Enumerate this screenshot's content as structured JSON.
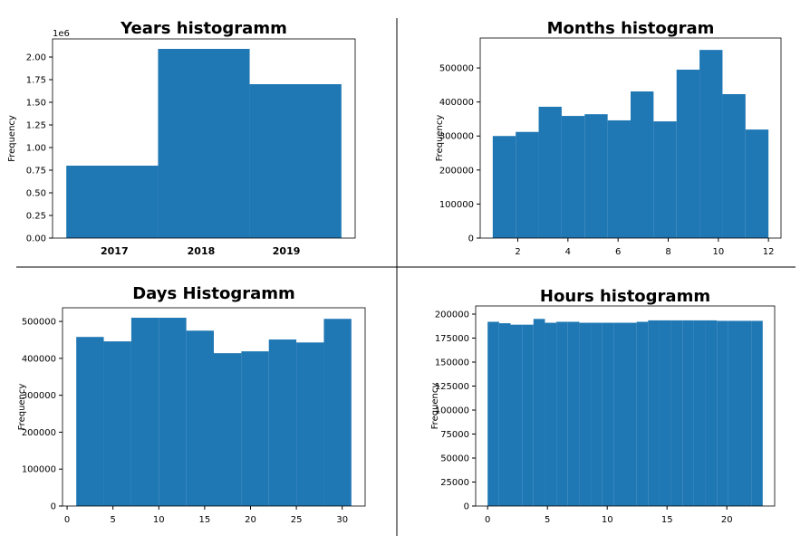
{
  "chart_data": [
    {
      "type": "histogram",
      "title": "Years histogramm",
      "ylabel": "Frequency",
      "offset_text": "1e6",
      "color": "#1f77b4",
      "bins": [
        2017,
        2017.667,
        2018.333,
        2019
      ],
      "values": [
        0.8,
        2.09,
        1.7
      ],
      "xlim": [
        2016.9,
        2019.1
      ],
      "ylim": [
        0,
        2.2
      ],
      "xticks": [
        {
          "value": 2017.35,
          "label": "2017"
        },
        {
          "value": 2017.98,
          "label": "2018"
        },
        {
          "value": 2018.6,
          "label": "2019"
        }
      ],
      "yticks": [
        {
          "value": 0,
          "label": "0.00"
        },
        {
          "value": 0.25,
          "label": "0.25"
        },
        {
          "value": 0.5,
          "label": "0.50"
        },
        {
          "value": 0.75,
          "label": "0.75"
        },
        {
          "value": 1,
          "label": "1.00"
        },
        {
          "value": 1.25,
          "label": "1.25"
        },
        {
          "value": 1.5,
          "label": "1.50"
        },
        {
          "value": 1.75,
          "label": "1.75"
        },
        {
          "value": 2,
          "label": "2.00"
        }
      ]
    },
    {
      "type": "histogram",
      "title": "Months histogram",
      "ylabel": "Frequency",
      "color": "#1f77b4",
      "bins": [
        1,
        1.9167,
        2.8333,
        3.75,
        4.6667,
        5.5833,
        6.5,
        7.4167,
        8.3333,
        9.25,
        10.1667,
        11.0833,
        12
      ],
      "values": [
        300000,
        312000,
        386000,
        359000,
        364000,
        346000,
        431000,
        343000,
        495000,
        553000,
        423000,
        319000
      ],
      "xlim": [
        0.5,
        12.5
      ],
      "ylim": [
        0,
        588000
      ],
      "xticks": [
        2,
        4,
        6,
        8,
        10,
        12
      ],
      "yticks": [
        0,
        100000,
        200000,
        300000,
        400000,
        500000
      ]
    },
    {
      "type": "histogram",
      "title": "Days Histogramm",
      "ylabel": "Frequency",
      "color": "#1f77b4",
      "bins": [
        1,
        4,
        7,
        10,
        13,
        16,
        19,
        22,
        25,
        28,
        31
      ],
      "values": [
        458000,
        446000,
        510000,
        510000,
        475000,
        414000,
        419000,
        451000,
        443000,
        507000
      ],
      "xlim": [
        -0.5,
        32.5
      ],
      "ylim": [
        0,
        537000
      ],
      "xticks": [
        0,
        5,
        10,
        15,
        20,
        25,
        30
      ],
      "yticks": [
        0,
        100000,
        200000,
        300000,
        400000,
        500000
      ]
    },
    {
      "type": "histogram",
      "title": "Hours histogramm",
      "ylabel": "Frequency",
      "color": "#1f77b4",
      "bins": [
        0,
        0.9583,
        1.9167,
        2.875,
        3.8333,
        4.7917,
        5.75,
        6.7083,
        7.6667,
        8.625,
        9.5833,
        10.5417,
        11.5,
        12.4583,
        13.4167,
        14.375,
        15.3333,
        16.2917,
        17.25,
        18.2083,
        19.1667,
        20.125,
        21.0833,
        22.0417,
        23
      ],
      "values": [
        192000,
        190500,
        189000,
        189000,
        195000,
        191000,
        192000,
        192000,
        191000,
        191000,
        191000,
        191000,
        191000,
        192000,
        193500,
        193500,
        193500,
        193500,
        193500,
        193500,
        193000,
        193000,
        193000,
        193000
      ],
      "xlim": [
        -1,
        24
      ],
      "ylim": [
        0,
        208500
      ],
      "xticks": [
        0,
        5,
        10,
        15,
        20
      ],
      "yticks": [
        0,
        25000,
        50000,
        75000,
        100000,
        125000,
        150000,
        175000,
        200000
      ]
    }
  ]
}
